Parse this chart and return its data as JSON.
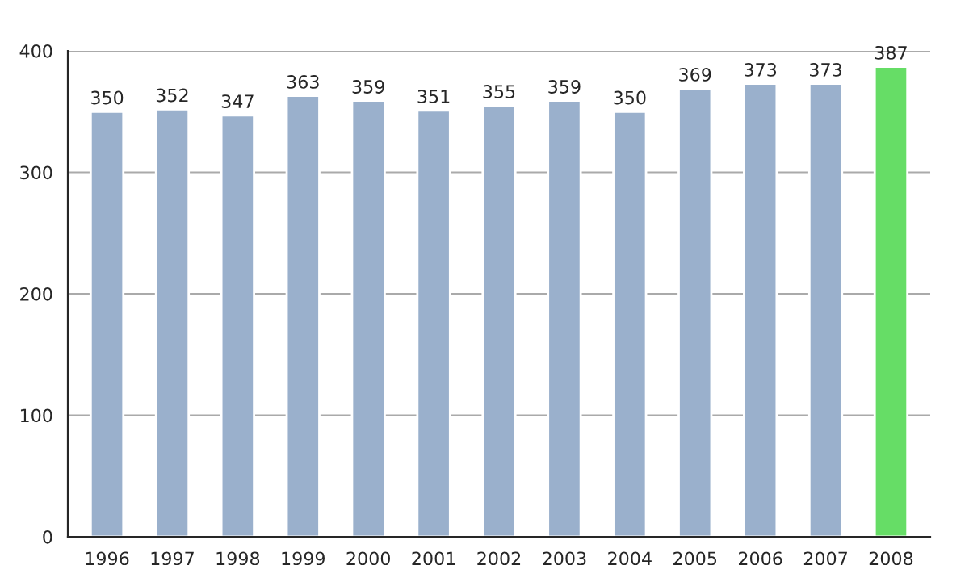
{
  "chart_data": {
    "type": "bar",
    "categories": [
      "1996",
      "1997",
      "1998",
      "1999",
      "2000",
      "2001",
      "2002",
      "2003",
      "2004",
      "2005",
      "2006",
      "2007",
      "2008"
    ],
    "values": [
      350,
      352,
      347,
      363,
      359,
      351,
      355,
      359,
      350,
      369,
      373,
      373,
      387
    ],
    "colors": [
      "#9ab0cc",
      "#9ab0cc",
      "#9ab0cc",
      "#9ab0cc",
      "#9ab0cc",
      "#9ab0cc",
      "#9ab0cc",
      "#9ab0cc",
      "#9ab0cc",
      "#9ab0cc",
      "#9ab0cc",
      "#9ab0cc",
      "#66dd66"
    ],
    "ylim": [
      0,
      400
    ],
    "yticks": [
      0,
      100,
      200,
      300,
      400
    ],
    "grid": "y",
    "data_labels": true
  }
}
